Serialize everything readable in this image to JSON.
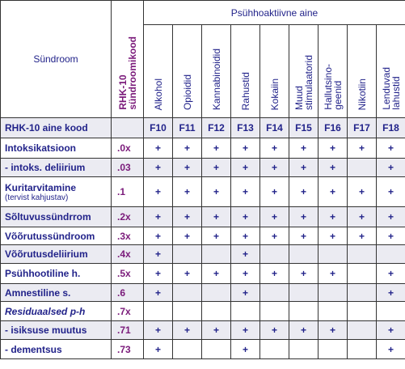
{
  "header": {
    "syndrome": "Sündroom",
    "code_column": "RHK-10\nsündroomikood",
    "group": "Psühhoaktiivne aine",
    "substances": [
      "Alkohol",
      "Opioidid",
      "Kannabinoidid",
      "Rahustid",
      "Kokaiin",
      "Muud\nstimulaatorid",
      "Hallutsino-\ngeenid",
      "Nikotiin",
      "Lenduvad\nlahustid"
    ]
  },
  "code_row": {
    "label": "RHK-10 aine kood",
    "codes": [
      "F10",
      "F11",
      "F12",
      "F13",
      "F14",
      "F15",
      "F16",
      "F17",
      "F18"
    ]
  },
  "rows": [
    {
      "label": "Intoksikatsioon",
      "code": ".0x",
      "cells": [
        "+",
        "+",
        "+",
        "+",
        "+",
        "+",
        "+",
        "+",
        "+"
      ]
    },
    {
      "label": "- intoks. deliirium",
      "code": ".03",
      "cells": [
        "+",
        "+",
        "+",
        "+",
        "+",
        "+",
        "+",
        null,
        "+"
      ]
    },
    {
      "label": "Kuritarvitamine",
      "sublabel": "(tervist kahjustav)",
      "code": ".1",
      "cells": [
        "+",
        "+",
        "+",
        "+",
        "+",
        "+",
        "+",
        "+",
        "+"
      ]
    },
    {
      "label": "Sõltuvussündrrom",
      "code": ".2x",
      "cells": [
        "+",
        "+",
        "+",
        "+",
        "+",
        "+",
        "+",
        "+",
        "+"
      ]
    },
    {
      "label": "Võõrutussündroom",
      "code": ".3x",
      "cells": [
        "+",
        "+",
        "+",
        "+",
        "+",
        "+",
        "+",
        "+",
        "+"
      ]
    },
    {
      "label": "Võõrutusdeliirium",
      "code": ".4x",
      "cells": [
        "+",
        null,
        null,
        "+",
        null,
        null,
        null,
        null,
        null
      ]
    },
    {
      "label": "Psühhootiline h.",
      "code": ".5x",
      "cells": [
        "+",
        "+",
        "+",
        "+",
        "+",
        "+",
        "+",
        null,
        "+"
      ]
    },
    {
      "label": "Amnestiline s.",
      "code": ".6",
      "cells": [
        "+",
        null,
        null,
        "+",
        null,
        null,
        null,
        null,
        "+"
      ]
    },
    {
      "label": "Residuaalsed p-h",
      "italic": true,
      "code": ".7x",
      "cells": [
        null,
        null,
        null,
        null,
        null,
        null,
        null,
        null,
        null
      ]
    },
    {
      "label": "- isiksuse muutus",
      "code": ".71",
      "cells": [
        "+",
        "+",
        "+",
        "+",
        "+",
        "+",
        "+",
        null,
        "+"
      ]
    },
    {
      "label": "- dementsus",
      "code": ".73",
      "cells": [
        "+",
        null,
        null,
        "+",
        null,
        null,
        null,
        null,
        "+"
      ]
    }
  ]
}
